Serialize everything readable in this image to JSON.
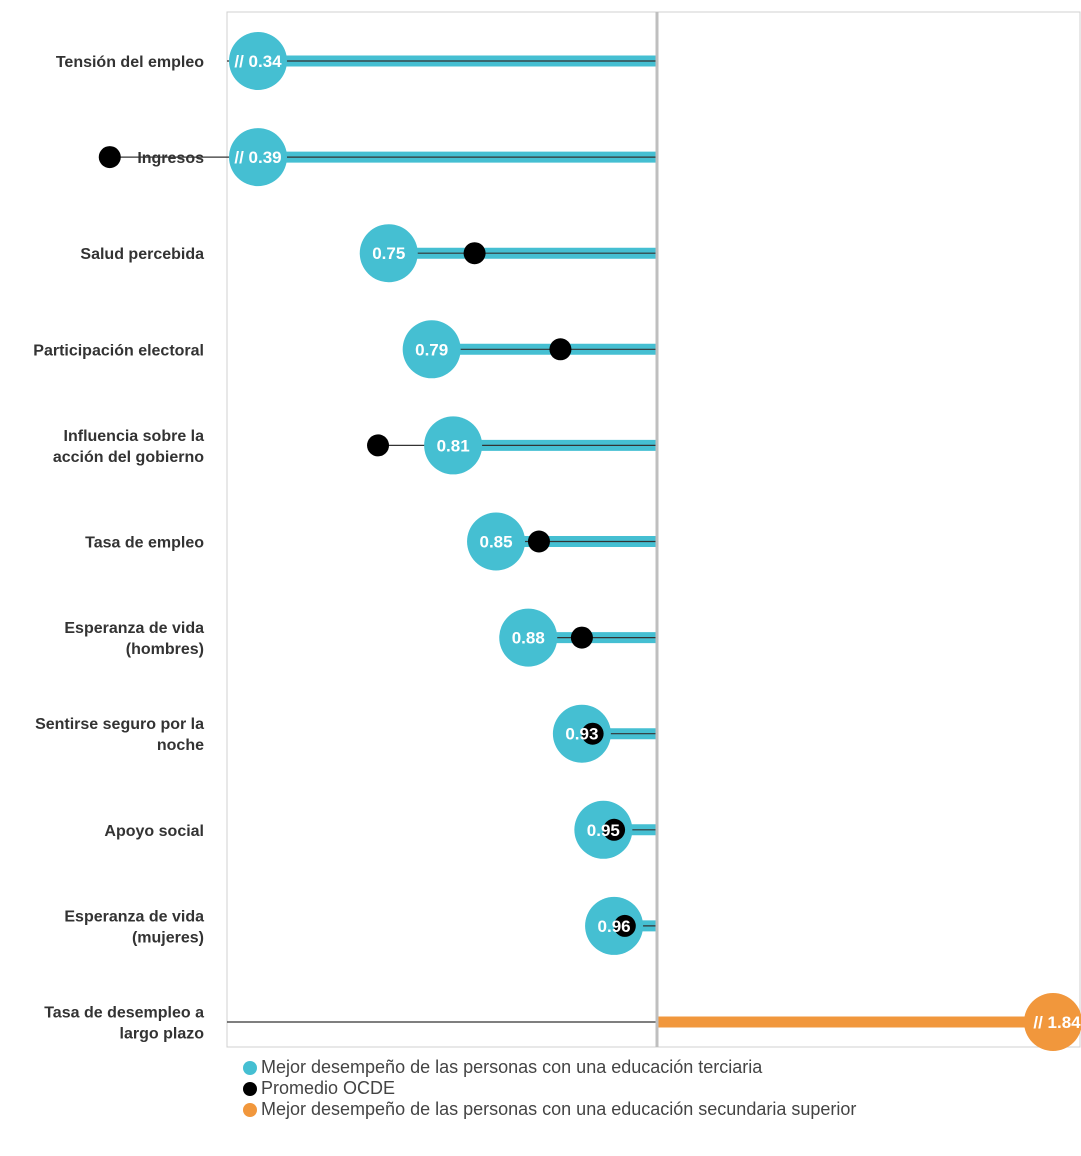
{
  "chart_data": {
    "type": "dumbbell",
    "reference_value": 1,
    "categories": [
      "Tensión del empleo",
      "Ingresos",
      "Salud percebida",
      "Participación electoral",
      "Influencia sobre la acción del gobierno",
      "Tasa de empleo",
      "Esperanza de vida (hombres)",
      "Sentirse seguro por la noche",
      "Apoyo social",
      "Esperanza de vida (mujeres)",
      "Tasa de desempleo a largo plazo"
    ],
    "category_lines": [
      [
        "Tensión del empleo"
      ],
      [
        "Ingresos"
      ],
      [
        "Salud percebida"
      ],
      [
        "Participación electoral"
      ],
      [
        "Influencia sobre la",
        "acción del gobierno"
      ],
      [
        "Tasa de empleo"
      ],
      [
        "Esperanza de vida",
        "(hombres)"
      ],
      [
        "Sentirse seguro por la",
        "noche"
      ],
      [
        "Apoyo social"
      ],
      [
        "Esperanza de vida",
        "(mujeres)"
      ],
      [
        "Tasa de desempleo a",
        "largo plazo"
      ]
    ],
    "series": [
      {
        "name": "Mejor desempeño de las personas con una educación terciaria",
        "color": "#45bfd2",
        "values": [
          0.34,
          0.39,
          0.75,
          0.79,
          0.81,
          0.85,
          0.88,
          0.93,
          0.95,
          0.96,
          null
        ],
        "labels": [
          "// 0.34",
          "// 0.39",
          "0.75",
          "0.79",
          "0.81",
          "0.85",
          "0.88",
          "0.93",
          "0.95",
          "0.96",
          null
        ]
      },
      {
        "name": "Promedio OCDE",
        "color": "#000000",
        "values": [
          null,
          0.49,
          0.83,
          0.91,
          0.74,
          0.89,
          0.93,
          0.94,
          0.96,
          0.97,
          null
        ]
      },
      {
        "name": "Mejor desempeño de las personas con una educación secundaria superior",
        "color": "#f1973c",
        "values": [
          null,
          null,
          null,
          null,
          null,
          null,
          null,
          null,
          null,
          null,
          1.84
        ],
        "labels": [
          null,
          null,
          null,
          null,
          null,
          null,
          null,
          null,
          null,
          null,
          "// 1.84"
        ]
      }
    ],
    "xlim": [
      0.6,
      1.4
    ],
    "axis_break": true,
    "legend_position": "bottom"
  }
}
